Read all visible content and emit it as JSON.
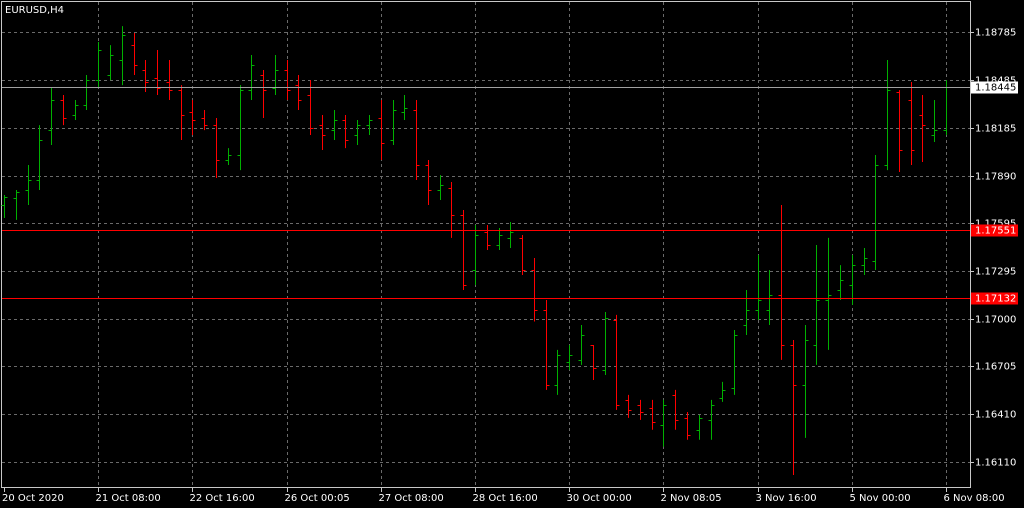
{
  "chart_data": {
    "type": "ohlc",
    "title": "EURUSD,H4",
    "categories": [
      "20 Oct 2020",
      null,
      null,
      null,
      null,
      null,
      null,
      null,
      "21 Oct 08:00",
      null,
      null,
      null,
      null,
      null,
      null,
      null,
      "22 Oct 16:00",
      null,
      null,
      null,
      null,
      null,
      null,
      null,
      "26 Oct 00:05",
      null,
      null,
      null,
      null,
      null,
      null,
      null,
      "27 Oct 08:00",
      null,
      null,
      null,
      null,
      null,
      null,
      null,
      "28 Oct 16:00",
      null,
      null,
      null,
      null,
      null,
      null,
      null,
      "30 Oct 00:00",
      null,
      null,
      null,
      null,
      null,
      null,
      null,
      "2 Nov 08:05",
      null,
      null,
      null,
      null,
      null,
      null,
      null,
      "3 Nov 16:00",
      null,
      null,
      null,
      null,
      null,
      null,
      null,
      "5 Nov 00:00",
      null,
      null,
      null,
      null,
      null,
      null,
      null,
      "6 Nov 08:00"
    ],
    "open": [
      1.17709,
      1.17752,
      1.17802,
      1.17864,
      1.18175,
      1.18362,
      1.18269,
      1.18331,
      1.18486,
      1.18518,
      1.18611,
      1.18704,
      1.18549,
      1.18499,
      1.18474,
      1.18424,
      1.18288,
      1.1825,
      1.18206,
      1.17989,
      1.1802,
      1.18424,
      1.18518,
      1.18437,
      1.18549,
      1.18455,
      1.18393,
      1.18206,
      1.18175,
      1.18238,
      1.18144,
      1.18206,
      1.1825,
      1.18113,
      1.18288,
      1.183,
      1.17958,
      1.17802,
      1.17815,
      1.17647,
      1.17304,
      1.17541,
      1.1746,
      1.17504,
      1.17504,
      1.17304,
      1.17056,
      1.16589,
      1.16732,
      1.16745,
      1.16838,
      1.16683,
      1.16993,
      1.16496,
      1.16465,
      1.16446,
      1.16341,
      1.16527,
      1.16384,
      1.1631,
      1.16372,
      1.16508,
      1.16571,
      1.16962,
      1.17056,
      1.17056,
      1.17149,
      1.16838,
      1.16589,
      1.16838,
      1.17118,
      1.1718,
      1.17211,
      1.17335,
      1.17362,
      1.17958,
      1.18412,
      1.18362,
      1.18269,
      1.18144,
      1.18175
    ],
    "high": [
      1.17771,
      1.17802,
      1.17958,
      1.18206,
      1.18437,
      1.18393,
      1.18362,
      1.18518,
      1.18723,
      1.18704,
      1.18822,
      1.18779,
      1.18611,
      1.18673,
      1.18611,
      1.18455,
      1.18362,
      1.183,
      1.1825,
      1.18063,
      1.18455,
      1.18642,
      1.18549,
      1.18642,
      1.18611,
      1.18518,
      1.18486,
      1.18269,
      1.183,
      1.18269,
      1.18238,
      1.18269,
      1.18362,
      1.18362,
      1.18393,
      1.18362,
      1.17989,
      1.17895,
      1.17852,
      1.17678,
      1.17584,
      1.17584,
      1.17566,
      1.17603,
      1.17522,
      1.17379,
      1.17118,
      1.16807,
      1.16838,
      1.16962,
      1.16838,
      1.17043,
      1.17025,
      1.16527,
      1.16496,
      1.16496,
      1.16496,
      1.16558,
      1.16421,
      1.16403,
      1.16496,
      1.16608,
      1.16931,
      1.1718,
      1.17398,
      1.17304,
      1.17709,
      1.16869,
      1.16962,
      1.1746,
      1.17504,
      1.17335,
      1.17398,
      1.17441,
      1.1802,
      1.18611,
      1.18424,
      1.18474,
      1.18393,
      1.18362,
      1.18486
    ],
    "low": [
      1.17628,
      1.17616,
      1.17709,
      1.17802,
      1.18082,
      1.18206,
      1.18238,
      1.183,
      1.18437,
      1.18486,
      1.18455,
      1.18518,
      1.18412,
      1.18393,
      1.18362,
      1.18113,
      1.18144,
      1.18175,
      1.17877,
      1.17958,
      1.17926,
      1.18362,
      1.1825,
      1.18393,
      1.18362,
      1.183,
      1.18144,
      1.18051,
      1.18113,
      1.18063,
      1.18082,
      1.18144,
      1.17989,
      1.18082,
      1.18238,
      1.17864,
      1.17709,
      1.1774,
      1.17504,
      1.1718,
      1.17211,
      1.17429,
      1.17429,
      1.17441,
      1.17273,
      1.16984,
      1.16558,
      1.16527,
      1.16683,
      1.16714,
      1.1662,
      1.16651,
      1.16434,
      1.16384,
      1.16372,
      1.1631,
      1.16205,
      1.1631,
      1.16248,
      1.16248,
      1.16248,
      1.16484,
      1.16527,
      1.169,
      1.16993,
      1.16962,
      1.16745,
      1.16029,
      1.1626,
      1.16714,
      1.16807,
      1.17118,
      1.17087,
      1.17273,
      1.17304,
      1.17926,
      1.17914,
      1.17958,
      1.17976,
      1.18101,
      1.18144
    ],
    "close": [
      1.17761,
      1.1779,
      1.17864,
      1.18113,
      1.18362,
      1.1825,
      1.18331,
      1.18486,
      1.18673,
      1.18642,
      1.18766,
      1.1858,
      1.18474,
      1.18437,
      1.18424,
      1.18269,
      1.18238,
      1.18206,
      1.17989,
      1.1802,
      1.18424,
      1.1858,
      1.18424,
      1.18549,
      1.18424,
      1.18362,
      1.18188,
      1.18144,
      1.18238,
      1.18113,
      1.18206,
      1.18238,
      1.18095,
      1.183,
      1.18312,
      1.17958,
      1.17802,
      1.17833,
      1.17647,
      1.17211,
      1.17522,
      1.1746,
      1.17522,
      1.17541,
      1.17304,
      1.17056,
      1.16589,
      1.16776,
      1.16776,
      1.169,
      1.16695,
      1.17006,
      1.16465,
      1.16434,
      1.16421,
      1.1636,
      1.16465,
      1.16372,
      1.16279,
      1.16384,
      1.16465,
      1.16558,
      1.169,
      1.17056,
      1.17118,
      1.17149,
      1.16838,
      1.16589,
      1.16869,
      1.17118,
      1.17149,
      1.17242,
      1.17335,
      1.17379,
      1.17958,
      1.18424,
      1.18051,
      1.18051,
      1.18206,
      1.18175,
      1.18445
    ],
    "up_color": "#00b000",
    "down_color": "#ff0000",
    "ylim": [
      1.15954,
      1.18972
    ],
    "yticks": [
      1.18785,
      1.18485,
      {
        "value": 1.18185,
        "label": "1.18185"
      },
      {
        "value": 1.1789,
        "label": "1.17890"
      },
      1.17595,
      1.17295,
      {
        "value": 1.17,
        "label": "1.17000"
      },
      1.16705,
      {
        "value": 1.1641,
        "label": "1.16410"
      },
      {
        "value": 1.1611,
        "label": "1.16110"
      }
    ],
    "grid": true,
    "levels": [
      {
        "value": 1.18445,
        "color": "#a0a0a0"
      },
      {
        "value": 1.17551,
        "color": "#ff0000"
      },
      {
        "value": 1.17132,
        "color": "#ff0000"
      }
    ]
  }
}
